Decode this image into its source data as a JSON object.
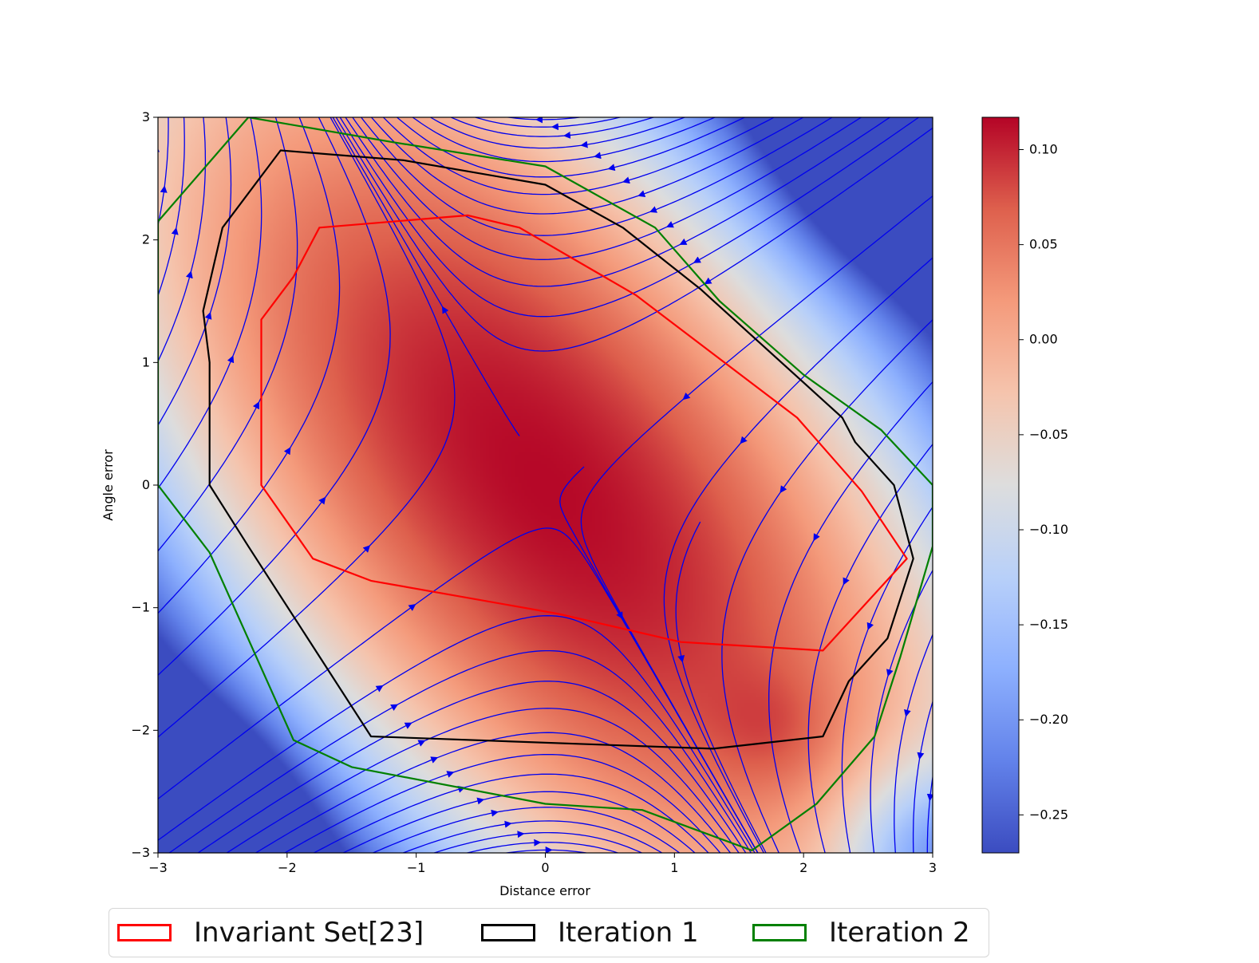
{
  "chart_data": {
    "type": "heatmap",
    "xlabel": "Distance error",
    "ylabel": "Angle error",
    "xlim": [
      -3,
      3
    ],
    "ylim": [
      -3,
      3
    ],
    "xticks": [
      -3,
      -2,
      -1,
      0,
      1,
      2,
      3
    ],
    "yticks": [
      -3,
      -2,
      -1,
      0,
      1,
      2,
      3
    ],
    "xtick_labels": [
      "−3",
      "−2",
      "−1",
      "0",
      "1",
      "2",
      "3"
    ],
    "ytick_labels": [
      "−3",
      "−2",
      "−1",
      "0",
      "1",
      "2",
      "3"
    ],
    "grid": false,
    "colormap": "coolwarm",
    "colorbar": {
      "vmin": -0.27,
      "vmax": 0.117,
      "ticks": [
        0.1,
        0.05,
        0.0,
        -0.05,
        -0.1,
        -0.15,
        -0.2,
        -0.25
      ],
      "tick_labels": [
        "0.10",
        "0.05",
        "0.00",
        "−0.05",
        "−0.10",
        "−0.15",
        "−0.20",
        "−0.25"
      ]
    },
    "streamplot": {
      "color": "#0000ee",
      "vector_field": "dx = -0.5*(x + y); dy = -0.75*x",
      "description_visible": false
    },
    "series": [
      {
        "name": "Invariant Set[23]",
        "color": "#ff0000",
        "type": "polygon",
        "points": [
          [
            -1.75,
            2.1
          ],
          [
            -0.6,
            2.2
          ],
          [
            -0.2,
            2.1
          ],
          [
            0.7,
            1.55
          ],
          [
            1.95,
            0.55
          ],
          [
            2.45,
            -0.05
          ],
          [
            2.8,
            -0.6
          ],
          [
            2.15,
            -1.35
          ],
          [
            1.05,
            -1.28
          ],
          [
            0.1,
            -1.05
          ],
          [
            -1.35,
            -0.78
          ],
          [
            -1.8,
            -0.6
          ],
          [
            -2.2,
            0.0
          ],
          [
            -2.2,
            1.35
          ],
          [
            -1.95,
            1.7
          ]
        ]
      },
      {
        "name": "Iteration 1",
        "color": "#000000",
        "type": "polygon",
        "points": [
          [
            -2.05,
            2.73
          ],
          [
            -1.1,
            2.65
          ],
          [
            0.0,
            2.45
          ],
          [
            0.6,
            2.1
          ],
          [
            1.2,
            1.6
          ],
          [
            2.3,
            0.55
          ],
          [
            2.4,
            0.35
          ],
          [
            2.7,
            0.0
          ],
          [
            2.85,
            -0.6
          ],
          [
            2.65,
            -1.25
          ],
          [
            2.35,
            -1.6
          ],
          [
            2.15,
            -2.05
          ],
          [
            1.3,
            -2.15
          ],
          [
            -1.35,
            -2.05
          ],
          [
            -2.3,
            -0.5
          ],
          [
            -2.6,
            0.0
          ],
          [
            -2.6,
            1.0
          ],
          [
            -2.65,
            1.42
          ],
          [
            -2.5,
            2.1
          ]
        ]
      },
      {
        "name": "Iteration 2",
        "color": "#008000",
        "type": "polygon",
        "points": [
          [
            -3.0,
            2.15
          ],
          [
            -2.3,
            3.0
          ],
          [
            -1.2,
            2.8
          ],
          [
            0.0,
            2.6
          ],
          [
            0.85,
            2.1
          ],
          [
            1.35,
            1.5
          ],
          [
            2.0,
            0.9
          ],
          [
            2.6,
            0.45
          ],
          [
            3.0,
            0.0
          ],
          [
            3.0,
            -0.5
          ],
          [
            2.75,
            -1.4
          ],
          [
            2.55,
            -2.05
          ],
          [
            2.1,
            -2.6
          ],
          [
            1.6,
            -2.98
          ],
          [
            0.75,
            -2.65
          ],
          [
            0.0,
            -2.6
          ],
          [
            -1.5,
            -2.3
          ],
          [
            -1.95,
            -2.08
          ],
          [
            -2.6,
            -0.55
          ],
          [
            -3.0,
            0.0
          ]
        ]
      }
    ],
    "legend": {
      "position": "bottom-center",
      "entries": [
        "Invariant Set[23]",
        "Iteration 1",
        "Iteration 2"
      ]
    }
  }
}
